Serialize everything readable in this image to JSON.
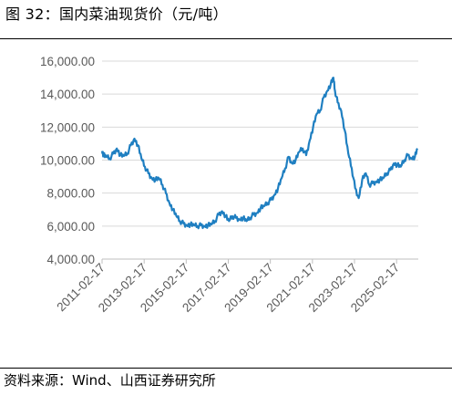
{
  "figure": {
    "title": "图 32：国内菜油现货价（元/吨）",
    "source": "资料来源：Wind、山西证券研究所"
  },
  "colors": {
    "line": "#1f7fc1",
    "grid": "#d9d9d9",
    "axis_text": "#595959"
  },
  "chart_data": {
    "type": "line",
    "title": "",
    "xlabel": "",
    "ylabel": "",
    "ylim": [
      4000,
      16000
    ],
    "y_ticks": [
      {
        "value": 4000,
        "label": "4,000.00"
      },
      {
        "value": 6000,
        "label": "6,000.00"
      },
      {
        "value": 8000,
        "label": "8,000.00"
      },
      {
        "value": 10000,
        "label": "10,000.00"
      },
      {
        "value": 12000,
        "label": "12,000.00"
      },
      {
        "value": 14000,
        "label": "14,000.00"
      },
      {
        "value": 16000,
        "label": "16,000.00"
      }
    ],
    "x_range": [
      "2011-02-17",
      "2026-03-01"
    ],
    "x_ticks": [
      "2011-02-17",
      "2013-02-17",
      "2015-02-17",
      "2017-02-17",
      "2019-02-17",
      "2021-02-17",
      "2023-02-17",
      "2025-02-17"
    ],
    "grid": {
      "horizontal": true,
      "vertical": false
    },
    "legend": "none",
    "series": [
      {
        "x": [
          "2011-02-17",
          "2011-03-15",
          "2011-05-01",
          "2011-07-01",
          "2011-09-01",
          "2011-11-01",
          "2012-01-01",
          "2012-03-01",
          "2012-05-01",
          "2012-07-01",
          "2012-09-01",
          "2012-11-01",
          "2013-01-01",
          "2013-03-01",
          "2013-05-01",
          "2013-07-01",
          "2013-09-01",
          "2013-11-01",
          "2014-01-01",
          "2014-03-01",
          "2014-05-01",
          "2014-07-01",
          "2014-09-01",
          "2014-11-01",
          "2015-01-01",
          "2015-03-01",
          "2015-05-01",
          "2015-07-01",
          "2015-09-01",
          "2015-11-01",
          "2016-01-01",
          "2016-03-01",
          "2016-05-01",
          "2016-07-01",
          "2016-09-01",
          "2016-11-01",
          "2017-01-01",
          "2017-03-01",
          "2017-05-01",
          "2017-07-01",
          "2017-09-01",
          "2017-11-01",
          "2018-01-01",
          "2018-03-01",
          "2018-05-01",
          "2018-07-01",
          "2018-09-01",
          "2018-11-01",
          "2019-01-01",
          "2019-03-01",
          "2019-05-01",
          "2019-07-01",
          "2019-09-01",
          "2019-11-01",
          "2020-01-01",
          "2020-03-01",
          "2020-05-01",
          "2020-07-01",
          "2020-09-01",
          "2020-11-01",
          "2021-01-01",
          "2021-03-01",
          "2021-05-01",
          "2021-07-01",
          "2021-09-01",
          "2021-11-01",
          "2022-01-01",
          "2022-02-15",
          "2022-03-15",
          "2022-05-01",
          "2022-07-01",
          "2022-09-01",
          "2022-11-01",
          "2023-01-01",
          "2023-03-01",
          "2023-05-01",
          "2023-07-01",
          "2023-09-01",
          "2023-11-01",
          "2024-01-01",
          "2024-03-01",
          "2024-05-01",
          "2024-07-01",
          "2024-09-01",
          "2024-11-01",
          "2025-01-01",
          "2025-03-01",
          "2025-05-01",
          "2025-07-01",
          "2025-09-01",
          "2025-11-01",
          "2026-01-01",
          "2026-02-15"
        ],
        "values": [
          10550,
          10300,
          10200,
          10100,
          10400,
          10700,
          10300,
          10250,
          10400,
          10900,
          11300,
          10900,
          10100,
          9600,
          9200,
          8900,
          8800,
          8900,
          8500,
          8000,
          7400,
          7000,
          6600,
          6300,
          6150,
          6050,
          6100,
          6050,
          6000,
          6050,
          6000,
          6050,
          6100,
          6300,
          6700,
          6900,
          6600,
          6300,
          6600,
          6500,
          6400,
          6500,
          6300,
          6500,
          6700,
          6800,
          7100,
          7200,
          7400,
          7600,
          7900,
          8300,
          8900,
          9500,
          10200,
          9800,
          10000,
          10500,
          10700,
          10300,
          11200,
          12000,
          12800,
          13000,
          13800,
          14200,
          14600,
          15000,
          14200,
          13500,
          13000,
          11800,
          10400,
          9500,
          8300,
          7700,
          8800,
          9200,
          8500,
          8600,
          8700,
          8800,
          8900,
          9200,
          9400,
          9800,
          9700,
          9600,
          10000,
          10300,
          10100,
          10200,
          10700
        ]
      }
    ]
  }
}
